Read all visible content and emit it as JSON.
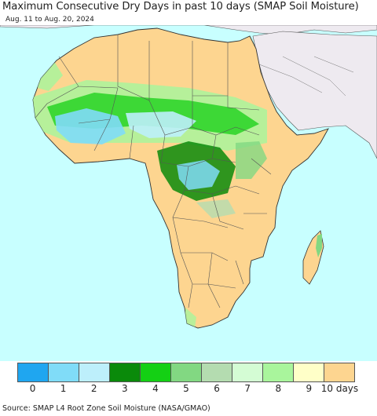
{
  "header": {
    "title": "Maximum Consecutive Dry Days in past 10 days (SMAP Soil Moisture)",
    "date_range": "Aug. 11 to Aug. 20, 2024"
  },
  "map": {
    "region": "Africa",
    "colors": {
      "ocean": "#c8ffff",
      "outside": "#eeeaf0",
      "dry": "#fdd590",
      "border": "#555555"
    }
  },
  "legend": {
    "items": [
      {
        "label": "0",
        "color": "#1fa6f0"
      },
      {
        "label": "1",
        "color": "#80dcf8"
      },
      {
        "label": "2",
        "color": "#bdeffb"
      },
      {
        "label": "3",
        "color": "#0a8a0a"
      },
      {
        "label": "4",
        "color": "#14d014"
      },
      {
        "label": "5",
        "color": "#82d882"
      },
      {
        "label": "6",
        "color": "#b4dcb0"
      },
      {
        "label": "7",
        "color": "#d4fcd4"
      },
      {
        "label": "8",
        "color": "#a9f59c"
      },
      {
        "label": "9",
        "color": "#ffffc8"
      },
      {
        "label": "10 days",
        "color": "#fdd590"
      }
    ]
  },
  "footer": {
    "source": "Source: SMAP L4 Root Zone Soil Moisture (NASA/GMAO)"
  }
}
